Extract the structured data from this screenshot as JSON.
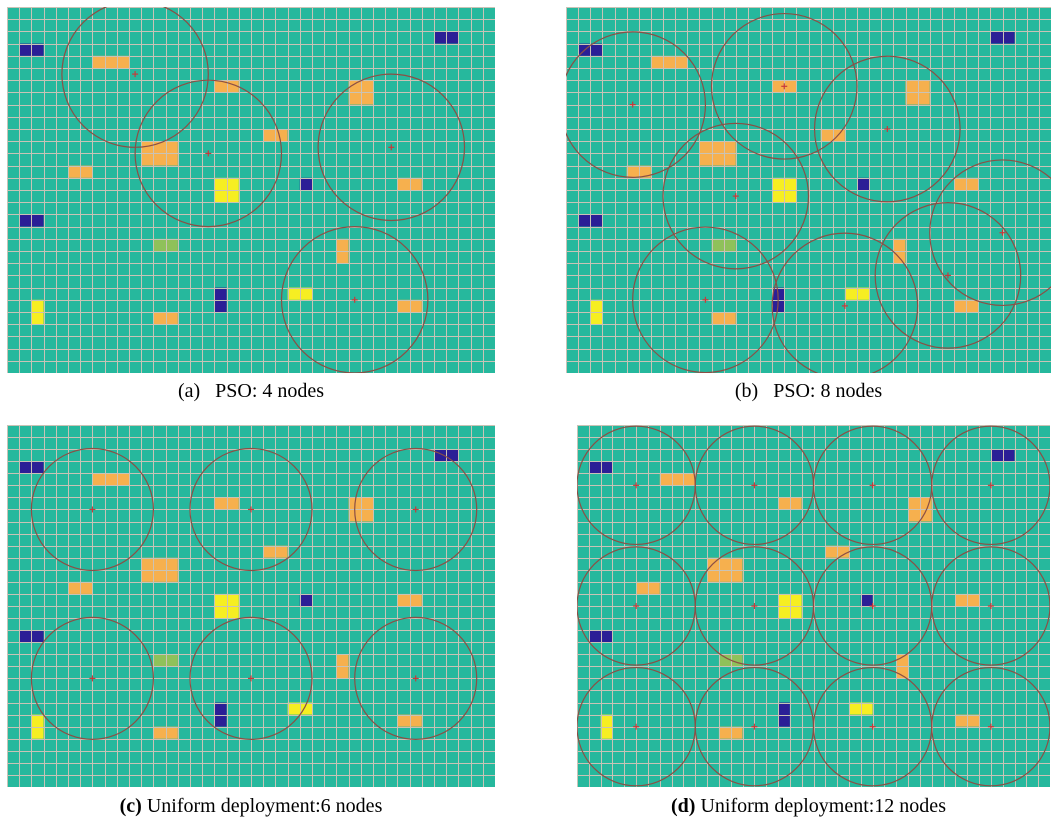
{
  "colors": {
    "field": "#26b89d",
    "grid": "#c9c3b6",
    "circle": "#8b4f45",
    "node": "#c8393a",
    "navy": "#2b1f96",
    "orange": "#f6b04e",
    "yellow": "#f6ee22",
    "green": "#8fc15a"
  },
  "panels": [
    {
      "id": "a",
      "label": "(a)",
      "text": "PSO: 4 nodes",
      "bold_label": false,
      "cols": 40,
      "rows": 30,
      "blocks": [
        {
          "c": 1,
          "r": 3,
          "w": 2,
          "h": 1,
          "color": "navy"
        },
        {
          "c": 35,
          "r": 2,
          "w": 2,
          "h": 1,
          "color": "navy"
        },
        {
          "c": 7,
          "r": 4,
          "w": 3,
          "h": 1,
          "color": "orange"
        },
        {
          "c": 17,
          "r": 6,
          "w": 2,
          "h": 1,
          "color": "orange"
        },
        {
          "c": 28,
          "r": 6,
          "w": 2,
          "h": 2,
          "color": "orange"
        },
        {
          "c": 21,
          "r": 10,
          "w": 2,
          "h": 1,
          "color": "orange"
        },
        {
          "c": 11,
          "r": 11,
          "w": 3,
          "h": 2,
          "color": "orange"
        },
        {
          "c": 5,
          "r": 13,
          "w": 2,
          "h": 1,
          "color": "orange"
        },
        {
          "c": 17,
          "r": 14,
          "w": 2,
          "h": 2,
          "color": "yellow"
        },
        {
          "c": 24,
          "r": 14,
          "w": 1,
          "h": 1,
          "color": "navy"
        },
        {
          "c": 32,
          "r": 14,
          "w": 2,
          "h": 1,
          "color": "orange"
        },
        {
          "c": 1,
          "r": 17,
          "w": 2,
          "h": 1,
          "color": "navy"
        },
        {
          "c": 12,
          "r": 19,
          "w": 2,
          "h": 1,
          "color": "green"
        },
        {
          "c": 27,
          "r": 19,
          "w": 1,
          "h": 2,
          "color": "orange"
        },
        {
          "c": 23,
          "r": 23,
          "w": 2,
          "h": 1,
          "color": "yellow"
        },
        {
          "c": 17,
          "r": 23,
          "w": 1,
          "h": 2,
          "color": "navy"
        },
        {
          "c": 2,
          "r": 24,
          "w": 1,
          "h": 2,
          "color": "yellow"
        },
        {
          "c": 32,
          "r": 24,
          "w": 2,
          "h": 1,
          "color": "orange"
        },
        {
          "c": 12,
          "r": 25,
          "w": 2,
          "h": 1,
          "color": "orange"
        }
      ],
      "nodes": [
        {
          "x": 10.5,
          "y": 5.5,
          "r": 6
        },
        {
          "x": 16.5,
          "y": 12,
          "r": 6
        },
        {
          "x": 31.5,
          "y": 11.5,
          "r": 6
        },
        {
          "x": 28.5,
          "y": 24,
          "r": 6
        }
      ]
    },
    {
      "id": "b",
      "label": "(b)",
      "text": "PSO: 8 nodes",
      "bold_label": false,
      "cols": 40,
      "rows": 30,
      "blocks": [
        {
          "c": 1,
          "r": 3,
          "w": 2,
          "h": 1,
          "color": "navy"
        },
        {
          "c": 35,
          "r": 2,
          "w": 2,
          "h": 1,
          "color": "navy"
        },
        {
          "c": 7,
          "r": 4,
          "w": 3,
          "h": 1,
          "color": "orange"
        },
        {
          "c": 17,
          "r": 6,
          "w": 2,
          "h": 1,
          "color": "orange"
        },
        {
          "c": 28,
          "r": 6,
          "w": 2,
          "h": 2,
          "color": "orange"
        },
        {
          "c": 21,
          "r": 10,
          "w": 2,
          "h": 1,
          "color": "orange"
        },
        {
          "c": 11,
          "r": 11,
          "w": 3,
          "h": 2,
          "color": "orange"
        },
        {
          "c": 5,
          "r": 13,
          "w": 2,
          "h": 1,
          "color": "orange"
        },
        {
          "c": 17,
          "r": 14,
          "w": 2,
          "h": 2,
          "color": "yellow"
        },
        {
          "c": 24,
          "r": 14,
          "w": 1,
          "h": 1,
          "color": "navy"
        },
        {
          "c": 32,
          "r": 14,
          "w": 2,
          "h": 1,
          "color": "orange"
        },
        {
          "c": 1,
          "r": 17,
          "w": 2,
          "h": 1,
          "color": "navy"
        },
        {
          "c": 12,
          "r": 19,
          "w": 2,
          "h": 1,
          "color": "green"
        },
        {
          "c": 27,
          "r": 19,
          "w": 1,
          "h": 2,
          "color": "orange"
        },
        {
          "c": 23,
          "r": 23,
          "w": 2,
          "h": 1,
          "color": "yellow"
        },
        {
          "c": 17,
          "r": 23,
          "w": 1,
          "h": 2,
          "color": "navy"
        },
        {
          "c": 2,
          "r": 24,
          "w": 1,
          "h": 2,
          "color": "yellow"
        },
        {
          "c": 32,
          "r": 24,
          "w": 2,
          "h": 1,
          "color": "orange"
        },
        {
          "c": 12,
          "r": 25,
          "w": 2,
          "h": 1,
          "color": "orange"
        }
      ],
      "nodes": [
        {
          "x": 5.5,
          "y": 8,
          "r": 6
        },
        {
          "x": 18,
          "y": 6.5,
          "r": 6
        },
        {
          "x": 26.5,
          "y": 10,
          "r": 6
        },
        {
          "x": 14,
          "y": 15.5,
          "r": 6
        },
        {
          "x": 11.5,
          "y": 24,
          "r": 6
        },
        {
          "x": 23,
          "y": 24.5,
          "r": 6
        },
        {
          "x": 31.5,
          "y": 22,
          "r": 6
        },
        {
          "x": 36,
          "y": 18.5,
          "r": 6
        }
      ]
    },
    {
      "id": "c",
      "label": "(c)",
      "text": "Uniform deployment:6 nodes",
      "bold_label": true,
      "cols": 40,
      "rows": 30,
      "blocks": [
        {
          "c": 1,
          "r": 3,
          "w": 2,
          "h": 1,
          "color": "navy"
        },
        {
          "c": 35,
          "r": 2,
          "w": 2,
          "h": 1,
          "color": "navy"
        },
        {
          "c": 7,
          "r": 4,
          "w": 3,
          "h": 1,
          "color": "orange"
        },
        {
          "c": 17,
          "r": 6,
          "w": 2,
          "h": 1,
          "color": "orange"
        },
        {
          "c": 28,
          "r": 6,
          "w": 2,
          "h": 2,
          "color": "orange"
        },
        {
          "c": 21,
          "r": 10,
          "w": 2,
          "h": 1,
          "color": "orange"
        },
        {
          "c": 11,
          "r": 11,
          "w": 3,
          "h": 2,
          "color": "orange"
        },
        {
          "c": 5,
          "r": 13,
          "w": 2,
          "h": 1,
          "color": "orange"
        },
        {
          "c": 17,
          "r": 14,
          "w": 2,
          "h": 2,
          "color": "yellow"
        },
        {
          "c": 24,
          "r": 14,
          "w": 1,
          "h": 1,
          "color": "navy"
        },
        {
          "c": 32,
          "r": 14,
          "w": 2,
          "h": 1,
          "color": "orange"
        },
        {
          "c": 1,
          "r": 17,
          "w": 2,
          "h": 1,
          "color": "navy"
        },
        {
          "c": 12,
          "r": 19,
          "w": 2,
          "h": 1,
          "color": "green"
        },
        {
          "c": 27,
          "r": 19,
          "w": 1,
          "h": 2,
          "color": "orange"
        },
        {
          "c": 23,
          "r": 23,
          "w": 2,
          "h": 1,
          "color": "yellow"
        },
        {
          "c": 17,
          "r": 23,
          "w": 1,
          "h": 2,
          "color": "navy"
        },
        {
          "c": 2,
          "r": 24,
          "w": 1,
          "h": 2,
          "color": "yellow"
        },
        {
          "c": 32,
          "r": 24,
          "w": 2,
          "h": 1,
          "color": "orange"
        },
        {
          "c": 12,
          "r": 25,
          "w": 2,
          "h": 1,
          "color": "orange"
        }
      ],
      "nodes": [
        {
          "x": 7,
          "y": 7,
          "r": 5
        },
        {
          "x": 20,
          "y": 7,
          "r": 5
        },
        {
          "x": 33.5,
          "y": 7,
          "r": 5
        },
        {
          "x": 7,
          "y": 21,
          "r": 5
        },
        {
          "x": 20,
          "y": 21,
          "r": 5
        },
        {
          "x": 33.5,
          "y": 21,
          "r": 5
        }
      ]
    },
    {
      "id": "d",
      "label": "(d)",
      "text": "Uniform deployment:12 nodes",
      "bold_label": true,
      "cols": 40,
      "rows": 30,
      "blocks": [
        {
          "c": 1,
          "r": 3,
          "w": 2,
          "h": 1,
          "color": "navy"
        },
        {
          "c": 35,
          "r": 2,
          "w": 2,
          "h": 1,
          "color": "navy"
        },
        {
          "c": 7,
          "r": 4,
          "w": 3,
          "h": 1,
          "color": "orange"
        },
        {
          "c": 17,
          "r": 6,
          "w": 2,
          "h": 1,
          "color": "orange"
        },
        {
          "c": 28,
          "r": 6,
          "w": 2,
          "h": 2,
          "color": "orange"
        },
        {
          "c": 21,
          "r": 10,
          "w": 2,
          "h": 1,
          "color": "orange"
        },
        {
          "c": 11,
          "r": 11,
          "w": 3,
          "h": 2,
          "color": "orange"
        },
        {
          "c": 5,
          "r": 13,
          "w": 2,
          "h": 1,
          "color": "orange"
        },
        {
          "c": 17,
          "r": 14,
          "w": 2,
          "h": 2,
          "color": "yellow"
        },
        {
          "c": 24,
          "r": 14,
          "w": 1,
          "h": 1,
          "color": "navy"
        },
        {
          "c": 32,
          "r": 14,
          "w": 2,
          "h": 1,
          "color": "orange"
        },
        {
          "c": 1,
          "r": 17,
          "w": 2,
          "h": 1,
          "color": "navy"
        },
        {
          "c": 12,
          "r": 19,
          "w": 2,
          "h": 1,
          "color": "green"
        },
        {
          "c": 27,
          "r": 19,
          "w": 1,
          "h": 2,
          "color": "orange"
        },
        {
          "c": 23,
          "r": 23,
          "w": 2,
          "h": 1,
          "color": "yellow"
        },
        {
          "c": 17,
          "r": 23,
          "w": 1,
          "h": 2,
          "color": "navy"
        },
        {
          "c": 2,
          "r": 24,
          "w": 1,
          "h": 2,
          "color": "yellow"
        },
        {
          "c": 32,
          "r": 24,
          "w": 2,
          "h": 1,
          "color": "orange"
        },
        {
          "c": 12,
          "r": 25,
          "w": 2,
          "h": 1,
          "color": "orange"
        }
      ],
      "nodes": [
        {
          "x": 5,
          "y": 5,
          "r": 5
        },
        {
          "x": 15,
          "y": 5,
          "r": 5
        },
        {
          "x": 25,
          "y": 5,
          "r": 5
        },
        {
          "x": 35,
          "y": 5,
          "r": 5
        },
        {
          "x": 5,
          "y": 15,
          "r": 5
        },
        {
          "x": 15,
          "y": 15,
          "r": 5
        },
        {
          "x": 25,
          "y": 15,
          "r": 5
        },
        {
          "x": 35,
          "y": 15,
          "r": 5
        },
        {
          "x": 5,
          "y": 25,
          "r": 5
        },
        {
          "x": 15,
          "y": 25,
          "r": 5
        },
        {
          "x": 25,
          "y": 25,
          "r": 5
        },
        {
          "x": 35,
          "y": 25,
          "r": 5
        }
      ]
    }
  ]
}
